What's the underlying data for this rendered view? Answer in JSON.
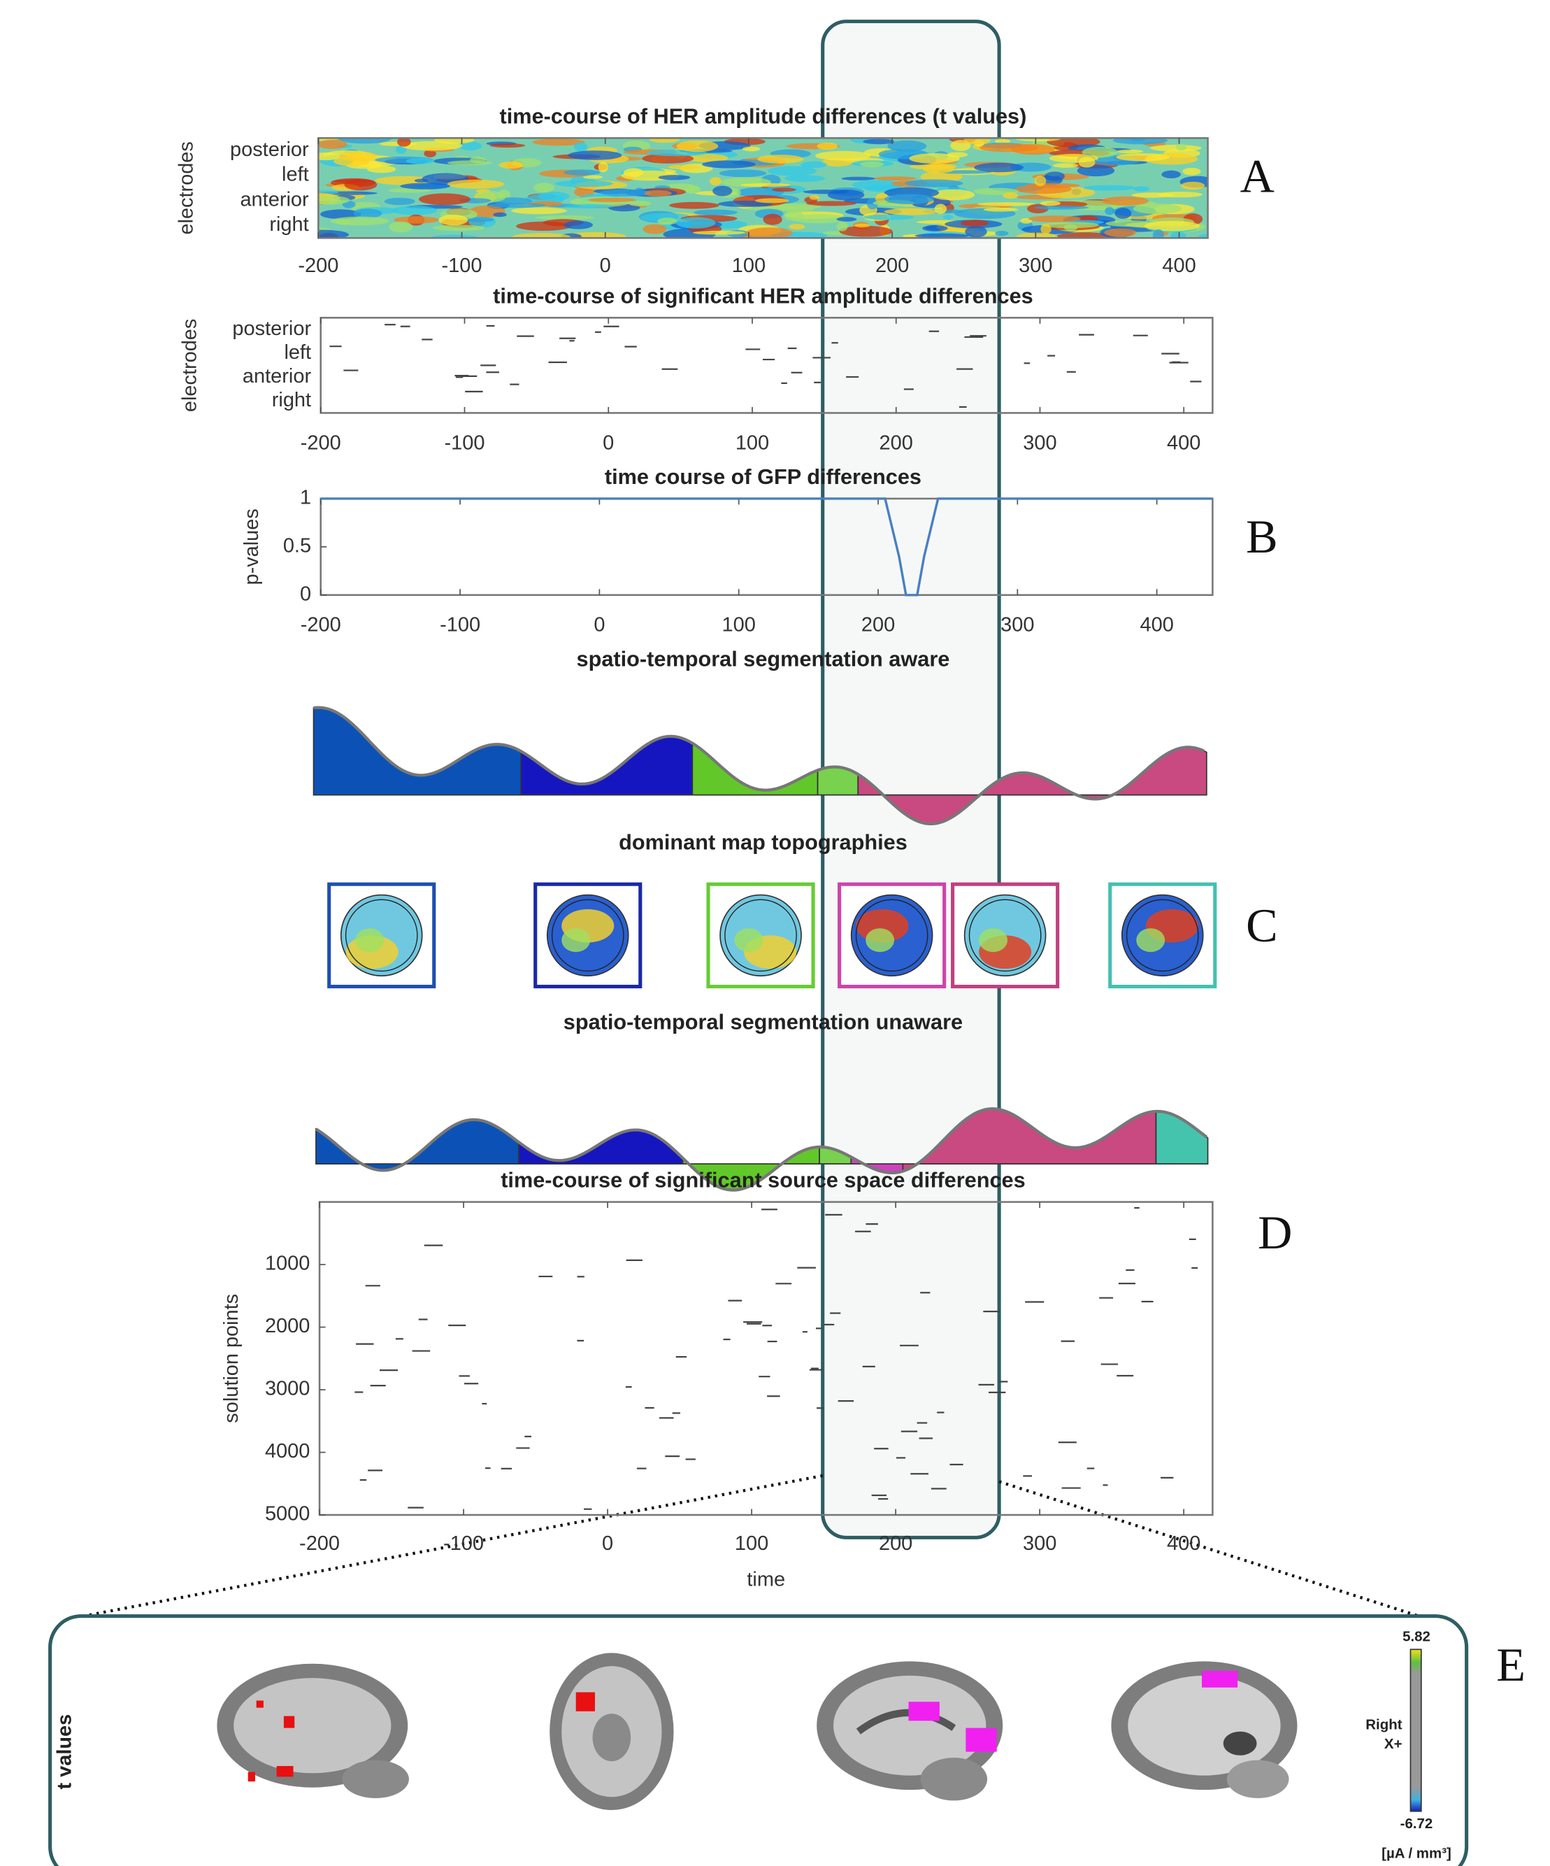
{
  "chart_data": [
    {
      "type": "heatmap",
      "title": "time-course of HER amplitude differences (t values)",
      "y_label": "electrodes",
      "categories": [
        "posterior",
        "left",
        "anterior",
        "right"
      ],
      "xlim": [
        -200,
        420
      ],
      "xticks": [
        -200,
        -100,
        0,
        100,
        200,
        300,
        400
      ]
    },
    {
      "type": "raster",
      "title": "time-course of significant HER amplitude differences",
      "y_label": "electrodes",
      "categories": [
        "posterior",
        "left",
        "anterior",
        "right"
      ],
      "xlim": [
        -200,
        420
      ],
      "xticks": [
        -200,
        -100,
        0,
        100,
        200,
        300,
        400
      ]
    },
    {
      "type": "line",
      "title": "time course of GFP differences",
      "y_label": "p-values",
      "color": "#4a7fc1",
      "x": [
        -200,
        205,
        215,
        220,
        228,
        233,
        243,
        440
      ],
      "values": [
        1,
        1,
        0.4,
        0,
        0,
        0.4,
        1,
        1
      ],
      "xlim": [
        -200,
        440
      ],
      "xticks": [
        -200,
        -100,
        0,
        100,
        200,
        300,
        400
      ],
      "ylim": [
        0,
        1
      ],
      "yticks": [
        0,
        0.5,
        1
      ]
    },
    {
      "type": "segmentation",
      "title": "spatio-temporal segmentation aware",
      "xlim": [
        -200,
        420
      ],
      "segments": [
        {
          "start": -200,
          "end": -56,
          "color": "#0c52b6"
        },
        {
          "start": -56,
          "end": 63,
          "color": "#1616c0"
        },
        {
          "start": 63,
          "end": 150,
          "color": "#62c82a"
        },
        {
          "start": 150,
          "end": 178,
          "color": "#78d24e"
        },
        {
          "start": 178,
          "end": 420,
          "color": "#c94a80"
        }
      ]
    },
    {
      "type": "topography",
      "title": "dominant map topographies",
      "colors": [
        "#1f4fb0",
        "#1a28a8",
        "#66cc33",
        "#cc44aa",
        "#c04080",
        "#44c0b0"
      ]
    },
    {
      "type": "segmentation",
      "title": "spatio-temporal segmentation unaware",
      "xlim": [
        -200,
        420
      ],
      "segments": [
        {
          "start": -200,
          "end": -59,
          "color": "#0c52b6"
        },
        {
          "start": -59,
          "end": 55,
          "color": "#1616c0"
        },
        {
          "start": 55,
          "end": 150,
          "color": "#62c82a"
        },
        {
          "start": 150,
          "end": 172,
          "color": "#78d24e"
        },
        {
          "start": 172,
          "end": 208,
          "color": "#cc44bb"
        },
        {
          "start": 208,
          "end": 384,
          "color": "#c94a80"
        },
        {
          "start": 384,
          "end": 420,
          "color": "#44c4ac"
        }
      ]
    },
    {
      "type": "raster",
      "title": "time-course of significant source space differences",
      "y_label": "solution points",
      "x_label": "time",
      "xlim": [
        -200,
        420
      ],
      "xticks": [
        -200,
        -100,
        0,
        100,
        200,
        300,
        400
      ],
      "ylim": [
        0,
        5000
      ],
      "yticks": [
        1000,
        2000,
        3000,
        4000,
        5000
      ],
      "y_reversed": true
    }
  ],
  "panel_labels": [
    "A",
    "B",
    "C",
    "D",
    "E"
  ],
  "source_panel": {
    "y_label": "t values",
    "colorbar_max": 5.82,
    "colorbar_min": -6.72,
    "orientation": [
      "Right",
      "X+"
    ],
    "unit": "[µA / mm³]"
  }
}
